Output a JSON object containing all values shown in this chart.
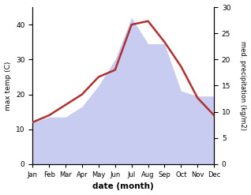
{
  "months": [
    "Jan",
    "Feb",
    "Mar",
    "Apr",
    "May",
    "Jun",
    "Jul",
    "Aug",
    "Sep",
    "Oct",
    "Nov",
    "Dec"
  ],
  "temperature": [
    12,
    14,
    17,
    20,
    25,
    27,
    40,
    41,
    35,
    28,
    19,
    14
  ],
  "precipitation": [
    8,
    9,
    9,
    11,
    15,
    20,
    28,
    23,
    23,
    14,
    13,
    13
  ],
  "temp_color": "#b03030",
  "precip_fill_color": "#c8ccf0",
  "left_ylabel": "max temp (C)",
  "right_ylabel": "med. precipitation (kg/m2)",
  "xlabel": "date (month)",
  "left_ylim": [
    0,
    45
  ],
  "right_ylim": [
    0,
    30
  ],
  "left_yticks": [
    0,
    10,
    20,
    30,
    40
  ],
  "right_yticks": [
    0,
    5,
    10,
    15,
    20,
    25,
    30
  ],
  "figsize": [
    3.18,
    2.47
  ],
  "dpi": 100
}
